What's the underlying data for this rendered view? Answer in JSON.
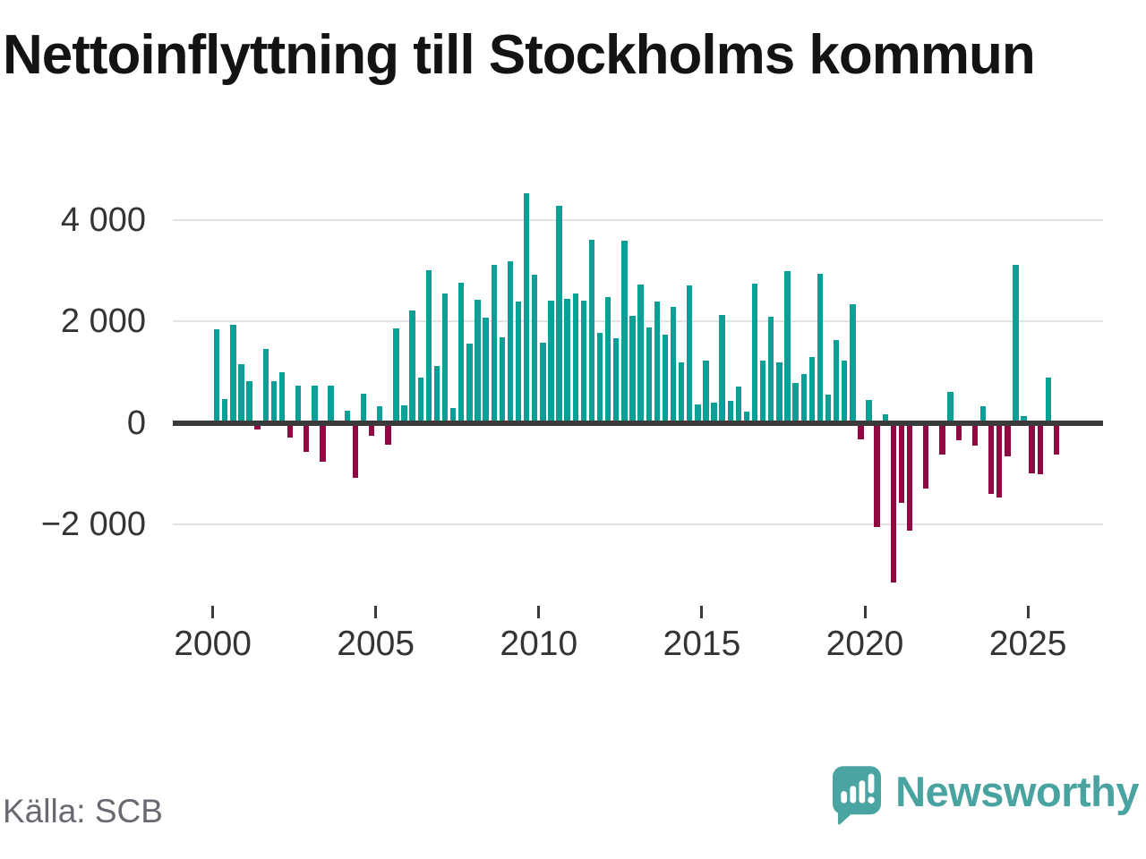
{
  "title": "Nettoinflyttning till Stockholms kommun",
  "source": "Källa: SCB",
  "branding": {
    "name": "Newsworthy",
    "logo_icon": "bar-chart-speech-bubble-icon"
  },
  "colors": {
    "positive": "#0aa096",
    "negative": "#910943",
    "axis": "#3a3a3a",
    "grid": "#e3e3e3",
    "tick_text": "#343434",
    "muted_text": "#696971",
    "brand": "#49a3a0",
    "title_text": "#131313",
    "background": "#ffffff"
  },
  "chart_data": {
    "type": "bar",
    "title": "Nettoinflyttning till Stockholms kommun",
    "frequency": "quarterly",
    "start": "2000Q1",
    "end": "2025Q4",
    "xlabel": "",
    "ylabel": "",
    "ylim": [
      -3400,
      4800
    ],
    "grid": "horizontal",
    "legend": "none",
    "y_ticks": [
      {
        "label": "4 000",
        "value": 4000
      },
      {
        "label": "2 000",
        "value": 2000
      },
      {
        "label": "0",
        "value": 0
      },
      {
        "label": "−2 000",
        "value": -2000
      }
    ],
    "x_ticks": [
      {
        "label": "2000",
        "year": 2000
      },
      {
        "label": "2005",
        "year": 2005
      },
      {
        "label": "2010",
        "year": 2010
      },
      {
        "label": "2015",
        "year": 2015
      },
      {
        "label": "2020",
        "year": 2020
      },
      {
        "label": "2025",
        "year": 2025
      }
    ],
    "values": [
      1840,
      460,
      1940,
      1160,
      830,
      -130,
      1460,
      820,
      1000,
      -290,
      730,
      -580,
      730,
      -760,
      730,
      0,
      240,
      -1090,
      570,
      -260,
      320,
      -430,
      1860,
      350,
      2210,
      890,
      3010,
      1130,
      2550,
      300,
      2770,
      1570,
      2430,
      2080,
      3120,
      1680,
      3190,
      2390,
      4540,
      2930,
      1590,
      2420,
      4280,
      2450,
      2560,
      2420,
      3620,
      1770,
      2490,
      1670,
      3590,
      2110,
      2730,
      1890,
      2400,
      1740,
      2290,
      1200,
      2720,
      360,
      1230,
      400,
      2130,
      440,
      720,
      220,
      2750,
      1230,
      2100,
      1200,
      2990,
      790,
      960,
      1300,
      2950,
      560,
      1640,
      1230,
      2340,
      -330,
      450,
      -2060,
      170,
      -3150,
      -1580,
      -2130,
      0,
      -1290,
      0,
      -630,
      610,
      -340,
      0,
      -450,
      330,
      -1400,
      -1470,
      -660,
      3120,
      130,
      -990,
      -1010,
      900,
      -620
    ]
  }
}
